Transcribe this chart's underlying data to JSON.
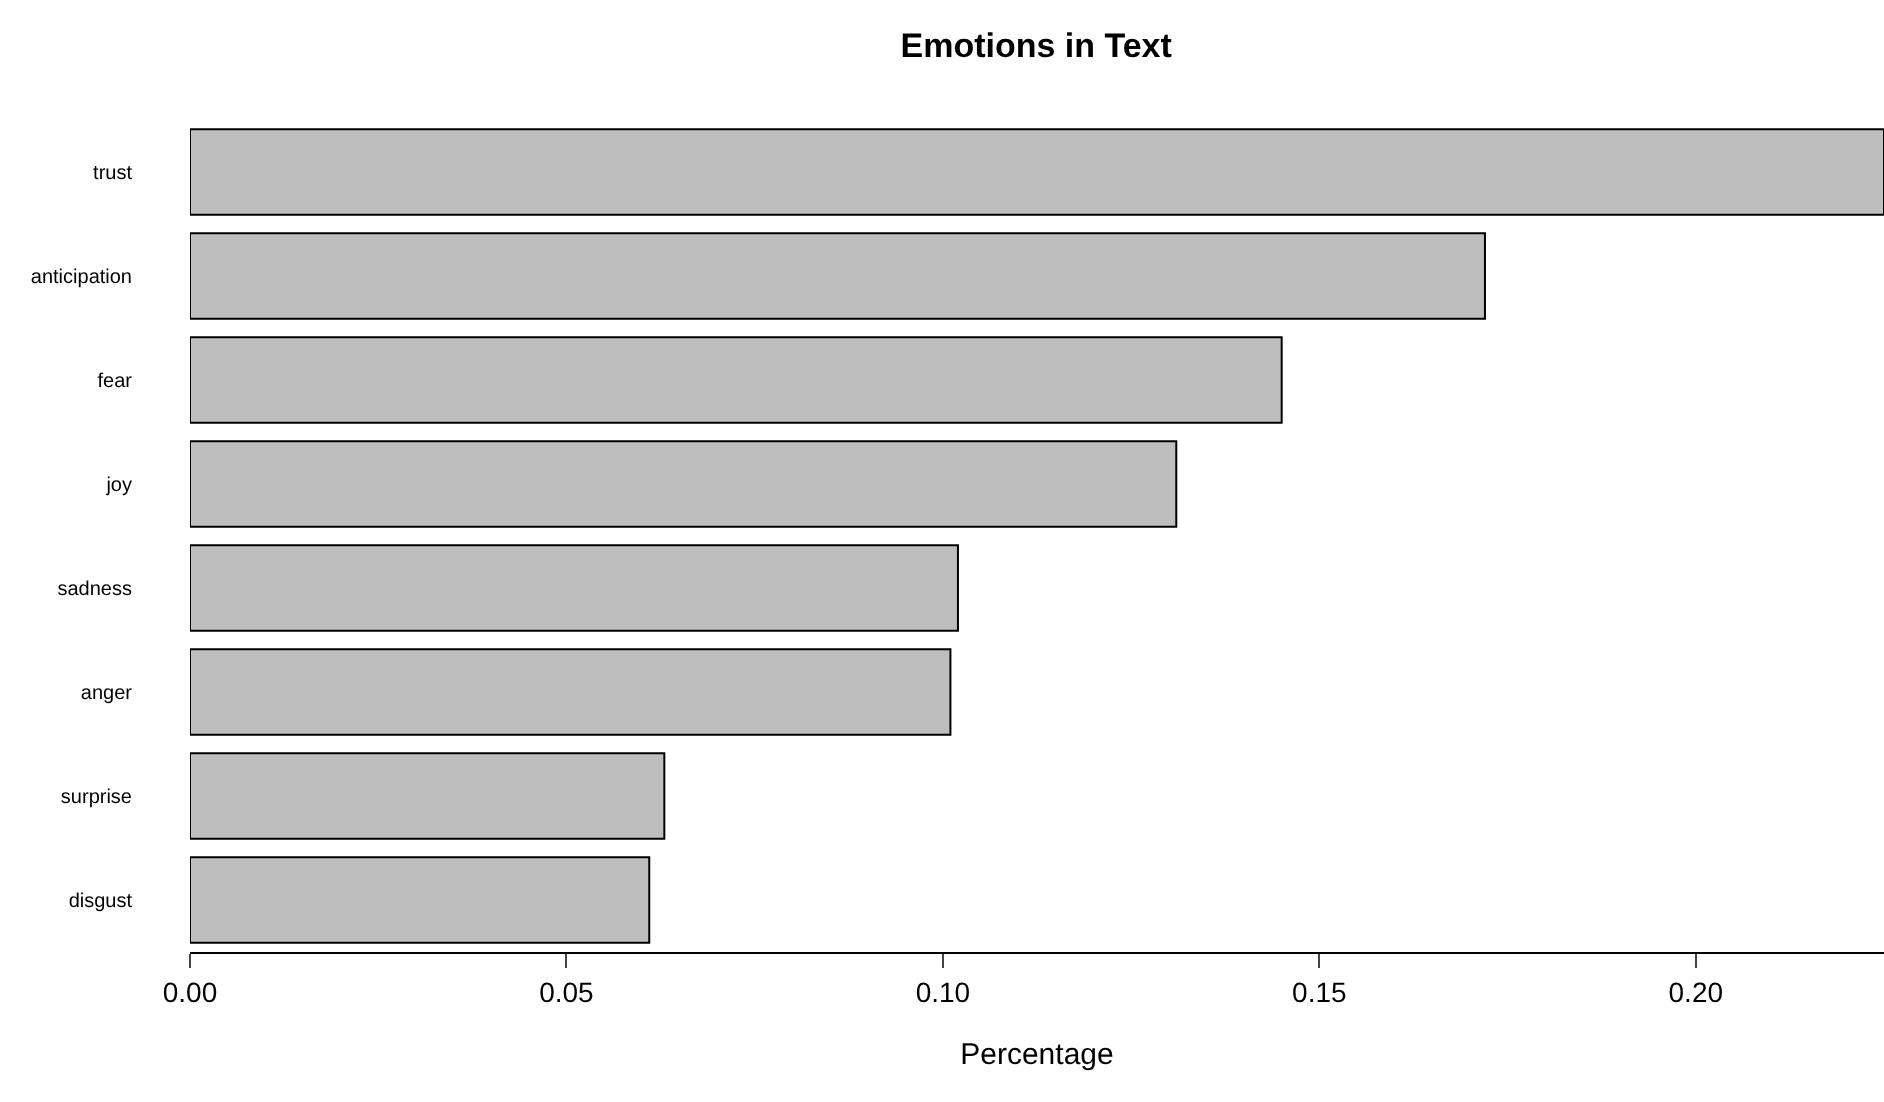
{
  "chart_data": {
    "type": "bar",
    "title": "Emotions in Text",
    "xlabel": "Percentage",
    "orientation": "horizontal",
    "categories": [
      "trust",
      "anticipation",
      "fear",
      "joy",
      "sadness",
      "anger",
      "surprise",
      "disgust"
    ],
    "values": [
      0.225,
      0.172,
      0.145,
      0.131,
      0.102,
      0.101,
      0.063,
      0.061
    ],
    "color": "#bebebe",
    "xlim": [
      0,
      0.225
    ],
    "xticks": [
      {
        "value": 0,
        "label": "0.00"
      },
      {
        "value": 0.05,
        "label": "0.05"
      },
      {
        "value": 0.1,
        "label": "0.10"
      },
      {
        "value": 0.15,
        "label": "0.15"
      },
      {
        "value": 0.2,
        "label": "0.20"
      }
    ],
    "grid": false
  }
}
